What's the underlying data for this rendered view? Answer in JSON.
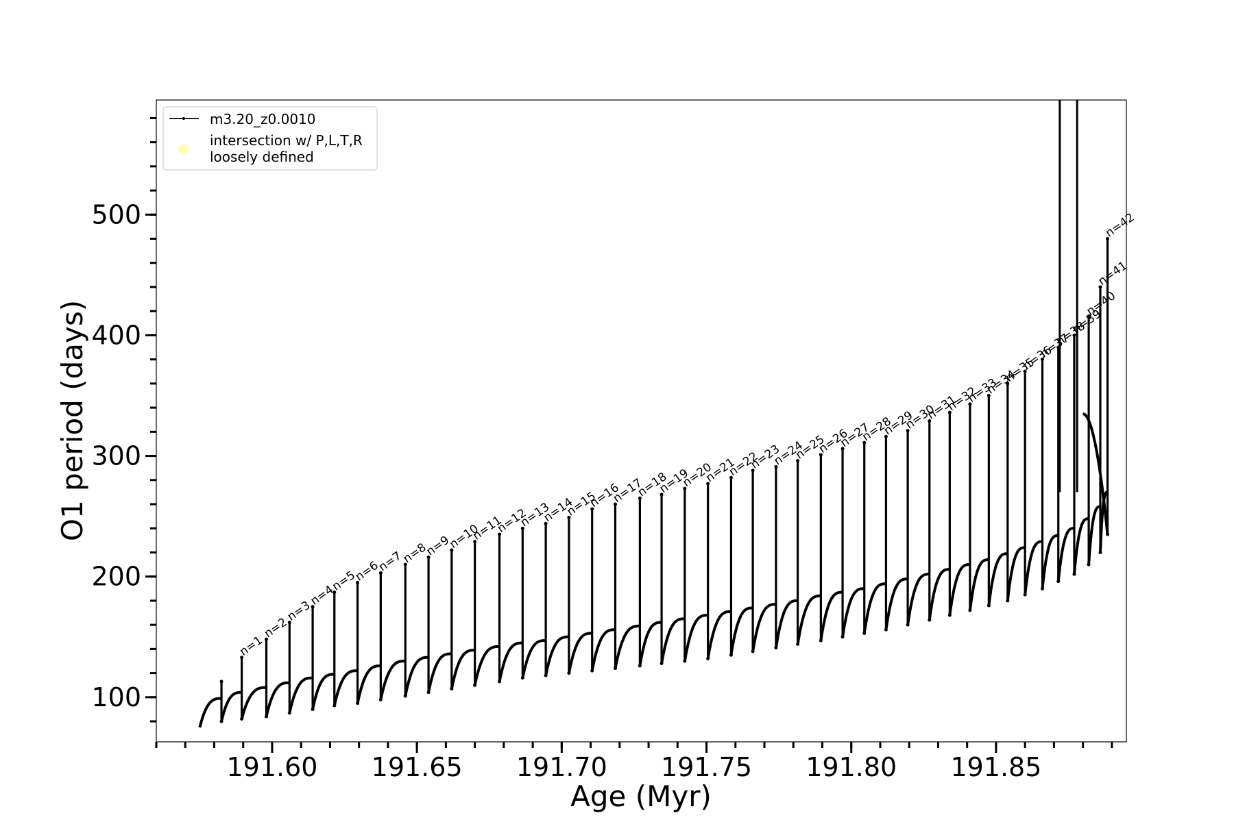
{
  "chart_data": {
    "type": "line",
    "xlabel": "Age (Myr)",
    "ylabel": "O1 period (days)",
    "xlim": [
      191.56,
      191.895
    ],
    "ylim": [
      63,
      595
    ],
    "x_ticks": [
      "191.60",
      "191.65",
      "191.70",
      "191.75",
      "191.80",
      "191.85"
    ],
    "x_tick_values": [
      191.6,
      191.65,
      191.7,
      191.75,
      191.8,
      191.85
    ],
    "x_minor_step": 0.01,
    "y_ticks": [
      "100",
      "200",
      "300",
      "400",
      "500"
    ],
    "y_tick_values": [
      100,
      200,
      300,
      400,
      500
    ],
    "y_minor_step": 20,
    "grid": false,
    "legend_position": "top-left",
    "legend": [
      {
        "label": "m3.20_z0.0010",
        "marker": "line-with-dots",
        "color": "#000000"
      },
      {
        "label": "intersection w/ P,L,T,R\nloosely defined",
        "marker": "circle",
        "color": "#ffffb3"
      }
    ],
    "series": [
      {
        "name": "m3.20_z0.0010",
        "color": "#000000",
        "start": {
          "age": 191.575,
          "period": 75
        },
        "end_age": 191.88,
        "pulses": [
          {
            "n": "n=1",
            "age": 191.5895,
            "peak": 133,
            "base": 104,
            "dip": 82
          },
          {
            "n": "n=2",
            "age": 191.598,
            "peak": 148,
            "base": 108,
            "dip": 84
          },
          {
            "n": "n=3",
            "age": 191.606,
            "peak": 162,
            "base": 112,
            "dip": 87
          },
          {
            "n": "n=4",
            "age": 191.614,
            "peak": 175,
            "base": 116,
            "dip": 90
          },
          {
            "n": "n=5",
            "age": 191.6215,
            "peak": 187,
            "base": 119,
            "dip": 93
          },
          {
            "n": "n=6",
            "age": 191.6295,
            "peak": 195,
            "base": 122,
            "dip": 95
          },
          {
            "n": "n=7",
            "age": 191.6375,
            "peak": 203,
            "base": 126,
            "dip": 98
          },
          {
            "n": "n=8",
            "age": 191.646,
            "peak": 210,
            "base": 130,
            "dip": 101
          },
          {
            "n": "n=9",
            "age": 191.654,
            "peak": 216,
            "base": 133,
            "dip": 104
          },
          {
            "n": "n=10",
            "age": 191.662,
            "peak": 222,
            "base": 136,
            "dip": 107
          },
          {
            "n": "n=11",
            "age": 191.67,
            "peak": 229,
            "base": 139,
            "dip": 110
          },
          {
            "n": "n=12",
            "age": 191.6785,
            "peak": 235,
            "base": 142,
            "dip": 113
          },
          {
            "n": "n=13",
            "age": 191.6865,
            "peak": 240,
            "base": 145,
            "dip": 116
          },
          {
            "n": "n=14",
            "age": 191.6945,
            "peak": 244,
            "base": 147,
            "dip": 118
          },
          {
            "n": "n=15",
            "age": 191.7025,
            "peak": 249,
            "base": 150,
            "dip": 120
          },
          {
            "n": "n=16",
            "age": 191.7105,
            "peak": 256,
            "base": 153,
            "dip": 122
          },
          {
            "n": "n=17",
            "age": 191.7185,
            "peak": 260,
            "base": 156,
            "dip": 124
          },
          {
            "n": "n=18",
            "age": 191.727,
            "peak": 265,
            "base": 159,
            "dip": 126
          },
          {
            "n": "n=19",
            "age": 191.7345,
            "peak": 268,
            "base": 162,
            "dip": 128
          },
          {
            "n": "n=20",
            "age": 191.7425,
            "peak": 273,
            "base": 165,
            "dip": 130
          },
          {
            "n": "n=21",
            "age": 191.7505,
            "peak": 277,
            "base": 168,
            "dip": 132
          },
          {
            "n": "n=22",
            "age": 191.7585,
            "peak": 282,
            "base": 171,
            "dip": 135
          },
          {
            "n": "n=23",
            "age": 191.766,
            "peak": 288,
            "base": 174,
            "dip": 138
          },
          {
            "n": "n=24",
            "age": 191.774,
            "peak": 291,
            "base": 177,
            "dip": 141
          },
          {
            "n": "n=25",
            "age": 191.7815,
            "peak": 296,
            "base": 180,
            "dip": 144
          },
          {
            "n": "n=26",
            "age": 191.7895,
            "peak": 301,
            "base": 184,
            "dip": 147
          },
          {
            "n": "n=27",
            "age": 191.797,
            "peak": 306,
            "base": 187,
            "dip": 150
          },
          {
            "n": "n=28",
            "age": 191.8045,
            "peak": 311,
            "base": 190,
            "dip": 153
          },
          {
            "n": "n=29",
            "age": 191.812,
            "peak": 316,
            "base": 194,
            "dip": 156
          },
          {
            "n": "n=30",
            "age": 191.8195,
            "peak": 321,
            "base": 198,
            "dip": 160
          },
          {
            "n": "n=31",
            "age": 191.827,
            "peak": 329,
            "base": 202,
            "dip": 164
          },
          {
            "n": "n=32",
            "age": 191.834,
            "peak": 336,
            "base": 206,
            "dip": 168
          },
          {
            "n": "n=33",
            "age": 191.841,
            "peak": 343,
            "base": 210,
            "dip": 172
          },
          {
            "n": "n=34",
            "age": 191.8475,
            "peak": 350,
            "base": 214,
            "dip": 176
          },
          {
            "n": "n=35",
            "age": 191.854,
            "peak": 360,
            "base": 219,
            "dip": 180
          },
          {
            "n": "n=36",
            "age": 191.86,
            "peak": 370,
            "base": 224,
            "dip": 185
          },
          {
            "n": "n=37",
            "age": 191.866,
            "peak": 380,
            "base": 229,
            "dip": 190
          },
          {
            "n": "n=38",
            "age": 191.8715,
            "peak": 390,
            "base": 234,
            "dip": 196
          },
          {
            "n": "n=39",
            "age": 191.877,
            "peak": 400,
            "base": 240,
            "dip": 202
          },
          {
            "n": "n=40",
            "age": 191.882,
            "peak": 415,
            "base": 248,
            "dip": 210
          },
          {
            "n": "n=41",
            "age": 191.886,
            "peak": 440,
            "base": 258,
            "dip": 220
          },
          {
            "n": "n=42",
            "age": 191.8885,
            "peak": 480,
            "base": 270,
            "dip": 235
          }
        ],
        "final_spikes": [
          {
            "age": 191.872,
            "period": 595
          },
          {
            "age": 191.878,
            "period": 595
          }
        ]
      }
    ]
  }
}
